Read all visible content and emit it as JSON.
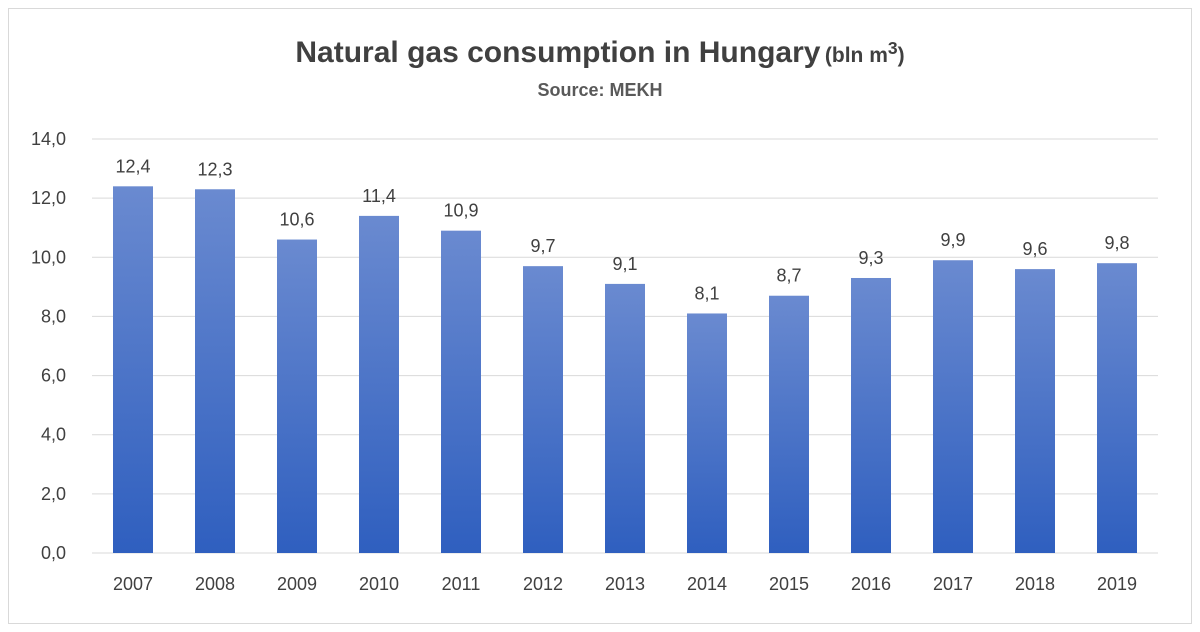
{
  "chart_data": {
    "type": "bar",
    "title": "Natural gas consumption in Hungary",
    "title_unit_base": "(bln m",
    "title_unit_sup": "3",
    "title_unit_close": ")",
    "subtitle": "Source: MEKH",
    "categories": [
      "2007",
      "2008",
      "2009",
      "2010",
      "2011",
      "2012",
      "2013",
      "2014",
      "2015",
      "2016",
      "2017",
      "2018",
      "2019"
    ],
    "values": [
      12.4,
      12.3,
      10.6,
      11.4,
      10.9,
      9.7,
      9.1,
      8.1,
      8.7,
      9.3,
      9.9,
      9.6,
      9.8
    ],
    "data_labels": [
      "12,4",
      "12,3",
      "10,6",
      "11,4",
      "10,9",
      "9,7",
      "9,1",
      "8,1",
      "8,7",
      "9,3",
      "9,9",
      "9,6",
      "9,8"
    ],
    "y_ticks": [
      0,
      2,
      4,
      6,
      8,
      10,
      12,
      14
    ],
    "y_tick_labels": [
      "0,0",
      "2,0",
      "4,0",
      "6,0",
      "8,0",
      "10,0",
      "12,0",
      "14,0"
    ],
    "ylim": [
      0,
      14
    ],
    "grid": true,
    "legend": "none",
    "colors": {
      "bar_top": "#6a8ad0",
      "bar_bottom": "#2f5fbf",
      "grid": "#d9d9d9",
      "text": "#404040"
    }
  }
}
